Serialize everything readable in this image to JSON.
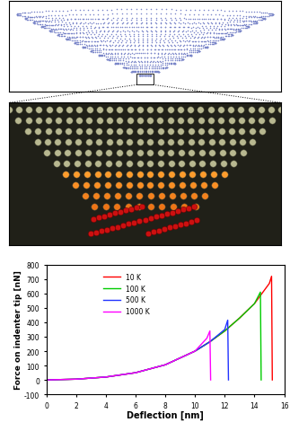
{
  "chart_data": {
    "type": "line",
    "xlabel": "Deflection [nm]",
    "ylabel": "Force on indenter tip [nN]",
    "xlim": [
      0,
      16
    ],
    "xticks": [
      0,
      2,
      4,
      6,
      8,
      10,
      12,
      14,
      16
    ],
    "ylim": [
      -100,
      800
    ],
    "yticks": [
      -100,
      0,
      100,
      200,
      300,
      400,
      500,
      600,
      700,
      800
    ],
    "legend": "upper left",
    "series": [
      {
        "name": "10 K",
        "color": "#ff0000",
        "x": [
          0,
          2,
          4,
          6,
          8,
          10,
          11,
          12,
          13,
          14,
          15,
          15.15,
          15.2
        ],
        "values": [
          0,
          5,
          20,
          50,
          105,
          200,
          265,
          340,
          430,
          530,
          670,
          720,
          0
        ]
      },
      {
        "name": "100 K",
        "color": "#00cc00",
        "x": [
          0,
          2,
          4,
          6,
          8,
          10,
          11,
          12,
          13,
          14,
          14.4,
          14.45
        ],
        "values": [
          0,
          5,
          20,
          50,
          105,
          200,
          265,
          340,
          430,
          530,
          610,
          0
        ]
      },
      {
        "name": "500 K",
        "color": "#2233ff",
        "x": [
          0,
          2,
          4,
          6,
          8,
          10,
          11,
          12,
          12.2,
          12.25
        ],
        "values": [
          0,
          5,
          20,
          50,
          105,
          200,
          265,
          350,
          415,
          0
        ]
      },
      {
        "name": "1000 K",
        "color": "#ff00ff",
        "x": [
          0,
          2,
          4,
          6,
          8,
          10,
          10.8,
          11.0,
          11.05
        ],
        "values": [
          0,
          5,
          20,
          50,
          105,
          200,
          290,
          340,
          0
        ]
      }
    ]
  }
}
